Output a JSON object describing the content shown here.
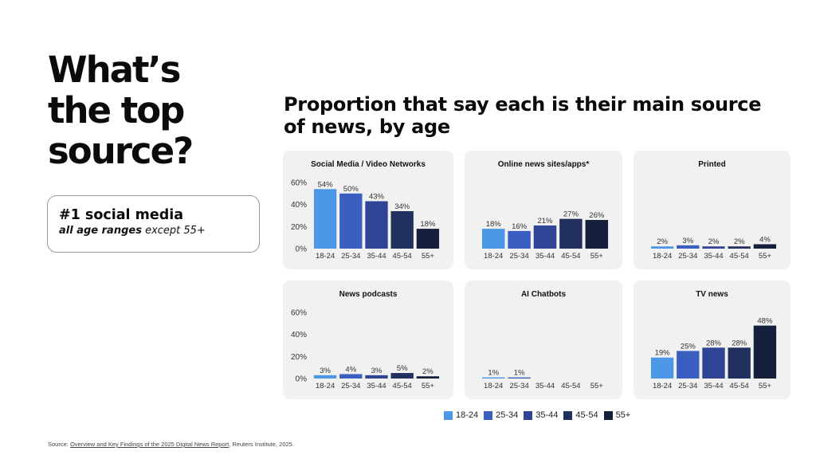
{
  "headline": {
    "line1": "What’s",
    "line2": "the top",
    "line3": "source?"
  },
  "callout": {
    "main": "#1 social media",
    "sub_bold": "all age ranges",
    "sub_rest": " except 55+"
  },
  "source": {
    "prefix": "Source: ",
    "link_text": "Overview and Key Findings of the 2025 Digital News Report",
    "suffix": ", Reuters Institute, 2025."
  },
  "colors": {
    "18-24": "#4c97e6",
    "25-34": "#3a5fc1",
    "35-44": "#2f4494",
    "45-54": "#22305f",
    "55+": "#141f3b"
  },
  "chart_data": {
    "type": "bar",
    "title": "Proportion that say each is their main source of news, by age",
    "categories": [
      "18-24",
      "25-34",
      "35-44",
      "45-54",
      "55+"
    ],
    "legend": {
      "placement": "bottom",
      "entries": [
        "18-24",
        "25-34",
        "35-44",
        "45-54",
        "55+"
      ]
    },
    "ylim": [
      0,
      60
    ],
    "yticks": [
      "0%",
      "20%",
      "40%",
      "60%"
    ],
    "panels": [
      {
        "title": "Social Media / Video Networks",
        "values": [
          54,
          50,
          43,
          34,
          18
        ],
        "labels": [
          "54%",
          "50%",
          "43%",
          "34%",
          "18%"
        ],
        "show_axis": true
      },
      {
        "title": "Online news sites/apps*",
        "values": [
          18,
          16,
          21,
          27,
          26
        ],
        "labels": [
          "18%",
          "16%",
          "21%",
          "27%",
          "26%"
        ],
        "show_axis": false
      },
      {
        "title": "Printed",
        "values": [
          2,
          3,
          2,
          2,
          4
        ],
        "labels": [
          "2%",
          "3%",
          "2%",
          "2%",
          "4%"
        ],
        "show_axis": false
      },
      {
        "title": "News podcasts",
        "values": [
          3,
          4,
          3,
          5,
          2
        ],
        "labels": [
          "3%",
          "4%",
          "3%",
          "5%",
          "2%"
        ],
        "show_axis": true
      },
      {
        "title": "AI Chatbots",
        "values": [
          1,
          1,
          0,
          0,
          0
        ],
        "labels": [
          "1%",
          "1%",
          "",
          "",
          ""
        ],
        "show_axis": false
      },
      {
        "title": "TV news",
        "values": [
          19,
          25,
          28,
          28,
          48
        ],
        "labels": [
          "19%",
          "25%",
          "28%",
          "28%",
          "48%"
        ],
        "show_axis": false
      }
    ]
  }
}
